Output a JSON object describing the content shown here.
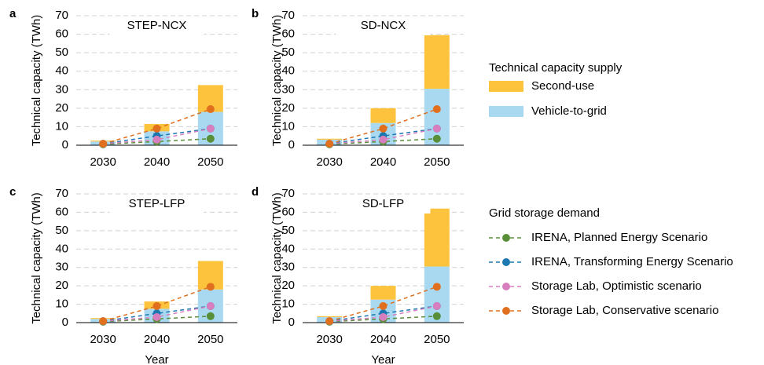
{
  "chart_data": [
    {
      "type": "bar",
      "panel_label": "a",
      "title": "STEP-NCX",
      "ylabel": "Technical capacity (TWh)",
      "categories": [
        "2030",
        "2040",
        "2050"
      ],
      "ylim": [
        0,
        70
      ],
      "yticks": [
        0,
        10,
        20,
        30,
        40,
        50,
        60,
        70
      ],
      "grid": true,
      "series": [
        {
          "name": "Vehicle-to-grid",
          "kind": "bar",
          "color": "#a9d9f1",
          "values": [
            2,
            7.5,
            18
          ]
        },
        {
          "name": "Second-use",
          "kind": "bar",
          "color": "#fec33d",
          "values": [
            0.5,
            4,
            14.5
          ]
        },
        {
          "name": "IRENA, Planned Energy Scenario",
          "kind": "line",
          "color": "#5a8f3a",
          "values": [
            0.5,
            2,
            3.5
          ]
        },
        {
          "name": "IRENA, Transforming Energy Scenario",
          "kind": "line",
          "color": "#1b78b0",
          "values": [
            0.8,
            5,
            9
          ]
        },
        {
          "name": "Storage Lab, Optimistic scenario",
          "kind": "line",
          "color": "#d77fbe",
          "values": [
            0.8,
            3,
            9
          ]
        },
        {
          "name": "Storage Lab, Conservative scenario",
          "kind": "line",
          "color": "#e0701e",
          "values": [
            0.8,
            9,
            19.5
          ]
        }
      ]
    },
    {
      "type": "bar",
      "panel_label": "b",
      "title": "SD-NCX",
      "ylabel": "Technical capacity (TWh)",
      "categories": [
        "2030",
        "2040",
        "2050"
      ],
      "ylim": [
        0,
        70
      ],
      "yticks": [
        0,
        10,
        20,
        30,
        40,
        50,
        60,
        70
      ],
      "grid": true,
      "series": [
        {
          "name": "Vehicle-to-grid",
          "kind": "bar",
          "color": "#a9d9f1",
          "values": [
            3,
            12,
            30.5
          ]
        },
        {
          "name": "Second-use",
          "kind": "bar",
          "color": "#fec33d",
          "values": [
            0.5,
            8,
            29
          ]
        },
        {
          "name": "IRENA, Planned Energy Scenario",
          "kind": "line",
          "color": "#5a8f3a",
          "values": [
            0.5,
            2,
            3.5
          ]
        },
        {
          "name": "IRENA, Transforming Energy Scenario",
          "kind": "line",
          "color": "#1b78b0",
          "values": [
            0.8,
            5,
            9
          ]
        },
        {
          "name": "Storage Lab, Optimistic scenario",
          "kind": "line",
          "color": "#d77fbe",
          "values": [
            0.8,
            3,
            9
          ]
        },
        {
          "name": "Storage Lab, Conservative scenario",
          "kind": "line",
          "color": "#e0701e",
          "values": [
            0.8,
            9,
            19.5
          ]
        }
      ]
    },
    {
      "type": "bar",
      "panel_label": "c",
      "title": "STEP-LFP",
      "ylabel": "Technical capacity (TWh)",
      "xlabel": "Year",
      "categories": [
        "2030",
        "2040",
        "2050"
      ],
      "ylim": [
        0,
        70
      ],
      "yticks": [
        0,
        10,
        20,
        30,
        40,
        50,
        60,
        70
      ],
      "grid": true,
      "series": [
        {
          "name": "Vehicle-to-grid",
          "kind": "bar",
          "color": "#a9d9f1",
          "values": [
            2,
            7.5,
            18
          ]
        },
        {
          "name": "Second-use",
          "kind": "bar",
          "color": "#fec33d",
          "values": [
            0.5,
            4,
            15.5
          ]
        },
        {
          "name": "IRENA, Planned Energy Scenario",
          "kind": "line",
          "color": "#5a8f3a",
          "values": [
            0.5,
            2,
            3.5
          ]
        },
        {
          "name": "IRENA, Transforming Energy Scenario",
          "kind": "line",
          "color": "#1b78b0",
          "values": [
            0.8,
            5,
            9
          ]
        },
        {
          "name": "Storage Lab, Optimistic scenario",
          "kind": "line",
          "color": "#d77fbe",
          "values": [
            0.8,
            3,
            9
          ]
        },
        {
          "name": "Storage Lab, Conservative scenario",
          "kind": "line",
          "color": "#e0701e",
          "values": [
            0.8,
            9,
            19.5
          ]
        }
      ]
    },
    {
      "type": "bar",
      "panel_label": "d",
      "title": "SD-LFP",
      "ylabel": "Technical capacity (TWh)",
      "xlabel": "Year",
      "categories": [
        "2030",
        "2040",
        "2050"
      ],
      "ylim": [
        0,
        70
      ],
      "yticks": [
        0,
        10,
        20,
        30,
        40,
        50,
        60,
        70
      ],
      "grid": true,
      "series": [
        {
          "name": "Vehicle-to-grid",
          "kind": "bar",
          "color": "#a9d9f1",
          "values": [
            3,
            12.5,
            30.5
          ]
        },
        {
          "name": "Second-use",
          "kind": "bar",
          "color": "#fec33d",
          "values": [
            0.5,
            7.5,
            31.5
          ]
        },
        {
          "name": "IRENA, Planned Energy Scenario",
          "kind": "line",
          "color": "#5a8f3a",
          "values": [
            0.5,
            2,
            3.5
          ]
        },
        {
          "name": "IRENA, Transforming Energy Scenario",
          "kind": "line",
          "color": "#1b78b0",
          "values": [
            0.8,
            5,
            9
          ]
        },
        {
          "name": "Storage Lab, Optimistic scenario",
          "kind": "line",
          "color": "#d77fbe",
          "values": [
            0.8,
            3,
            9
          ]
        },
        {
          "name": "Storage Lab, Conservative scenario",
          "kind": "line",
          "color": "#e0701e",
          "values": [
            0.8,
            9,
            19.5
          ]
        }
      ]
    }
  ],
  "legend": {
    "supply_title": "Technical capacity supply",
    "demand_title": "Grid storage demand"
  }
}
